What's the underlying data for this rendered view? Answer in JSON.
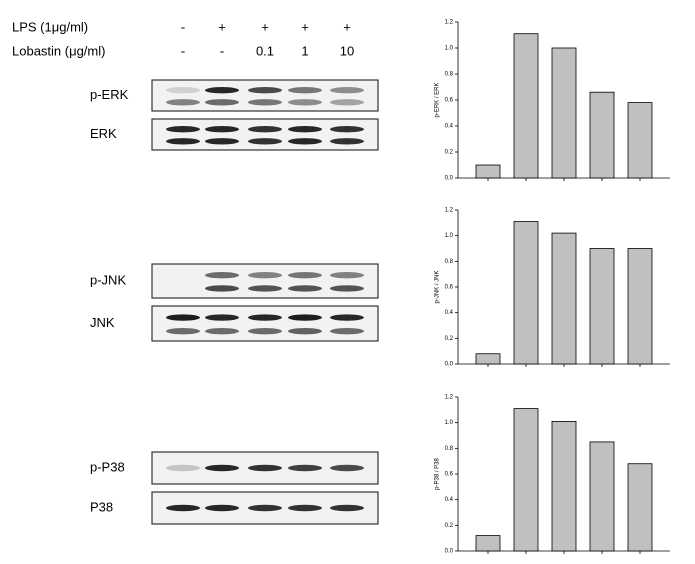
{
  "treatments": [
    {
      "label": "LPS (1μg/ml)",
      "lanes": [
        "-",
        "+",
        "+",
        "+",
        "+"
      ]
    },
    {
      "label": "Lobastin (μg/ml)",
      "lanes": [
        "-",
        "-",
        "0.1",
        "1",
        "10"
      ]
    }
  ],
  "blots": [
    {
      "label": "p-ERK"
    },
    {
      "label": "ERK"
    },
    {
      "label": "p-JNK"
    },
    {
      "label": "JNK"
    },
    {
      "label": "p-P38"
    },
    {
      "label": "P38"
    }
  ],
  "chart_data": [
    {
      "type": "bar",
      "y_label": "p-ERK / ERK",
      "categories": [
        null,
        null,
        null,
        null,
        null
      ],
      "values": [
        0.1,
        1.11,
        1.0,
        0.66,
        0.58
      ],
      "color": "#c0c0c0",
      "ylim": [
        0,
        1.2
      ],
      "yticks": [
        {
          "value": 0,
          "label": "0.0"
        },
        {
          "value": 0.2,
          "label": "0.2"
        },
        {
          "value": 0.4,
          "label": "0.4"
        },
        {
          "value": 0.6,
          "label": "0.6"
        },
        {
          "value": 0.8,
          "label": "0.8"
        },
        {
          "value": 1,
          "label": "1.0"
        },
        {
          "value": 1.2,
          "label": "1.2"
        }
      ]
    },
    {
      "type": "bar",
      "y_label": "p-JNK / JNK",
      "categories": [
        null,
        null,
        null,
        null,
        null
      ],
      "values": [
        0.08,
        1.11,
        1.02,
        0.9,
        0.9
      ],
      "color": "#c0c0c0",
      "ylim": [
        0,
        1.2
      ],
      "yticks": [
        {
          "value": 0,
          "label": "0.0"
        },
        {
          "value": 0.2,
          "label": "0.2"
        },
        {
          "value": 0.4,
          "label": "0.4"
        },
        {
          "value": 0.6,
          "label": "0.6"
        },
        {
          "value": 0.8,
          "label": "0.8"
        },
        {
          "value": 1,
          "label": "1.0"
        },
        {
          "value": 1.2,
          "label": "1.2"
        }
      ]
    },
    {
      "type": "bar",
      "y_label": "p-P38 / P38",
      "categories": [
        null,
        null,
        null,
        null,
        null
      ],
      "values": [
        0.12,
        1.11,
        1.01,
        0.85,
        0.68
      ],
      "color": "#c0c0c0",
      "ylim": [
        0,
        1.2
      ],
      "yticks": [
        {
          "value": 0,
          "label": "0.0"
        },
        {
          "value": 0.2,
          "label": "0.2"
        },
        {
          "value": 0.4,
          "label": "0.4"
        },
        {
          "value": 0.6,
          "label": "0.6"
        },
        {
          "value": 0.8,
          "label": "0.8"
        },
        {
          "value": 1,
          "label": "1.0"
        },
        {
          "value": 1.2,
          "label": "1.2"
        }
      ]
    }
  ]
}
